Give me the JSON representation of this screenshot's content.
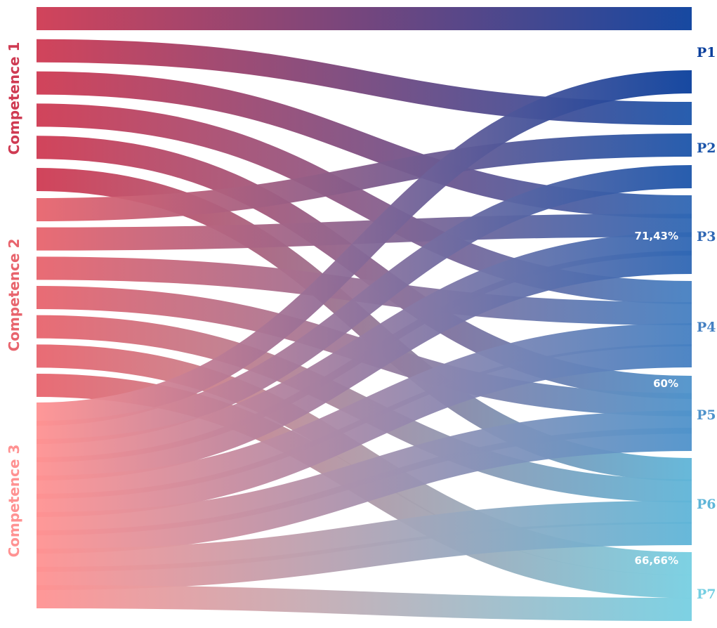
{
  "sources": [
    {
      "label": "Competence 1",
      "color": "#cf3a52"
    },
    {
      "label": "Competence 2",
      "color": "#e8646d"
    },
    {
      "label": "Competence 3",
      "color": "#ff9292"
    }
  ],
  "targets": [
    {
      "label": "P1",
      "color": "#0a3f9c"
    },
    {
      "label": "P2",
      "color": "#1c55aa"
    },
    {
      "label": "P3",
      "color": "#2f67b4"
    },
    {
      "label": "P4",
      "color": "#4580c2"
    },
    {
      "label": "P5",
      "color": "#4f93cb"
    },
    {
      "label": "P6",
      "color": "#5fb5d8"
    },
    {
      "label": "P7",
      "color": "#76cfe2"
    }
  ],
  "annotations": [
    {
      "text": "71,43%",
      "target": "P3"
    },
    {
      "text": "60%",
      "target": "P5"
    },
    {
      "text": "66,66%",
      "target": "P7"
    }
  ],
  "links": [
    {
      "source": 0,
      "target": 0
    },
    {
      "source": 0,
      "target": 1
    },
    {
      "source": 0,
      "target": 2
    },
    {
      "source": 0,
      "target": 3
    },
    {
      "source": 0,
      "target": 4
    },
    {
      "source": 0,
      "target": 5
    },
    {
      "source": 1,
      "target": 1
    },
    {
      "source": 1,
      "target": 2
    },
    {
      "source": 1,
      "target": 3
    },
    {
      "source": 1,
      "target": 4
    },
    {
      "source": 1,
      "target": 5
    },
    {
      "source": 1,
      "target": 6
    },
    {
      "source": 1,
      "target": 6
    },
    {
      "source": 2,
      "target": 0
    },
    {
      "source": 2,
      "target": 1
    },
    {
      "source": 2,
      "target": 2
    },
    {
      "source": 2,
      "target": 2
    },
    {
      "source": 2,
      "target": 3
    },
    {
      "source": 2,
      "target": 3
    },
    {
      "source": 2,
      "target": 4
    },
    {
      "source": 2,
      "target": 4
    },
    {
      "source": 2,
      "target": 5
    },
    {
      "source": 2,
      "target": 5
    },
    {
      "source": 2,
      "target": 6
    }
  ]
}
